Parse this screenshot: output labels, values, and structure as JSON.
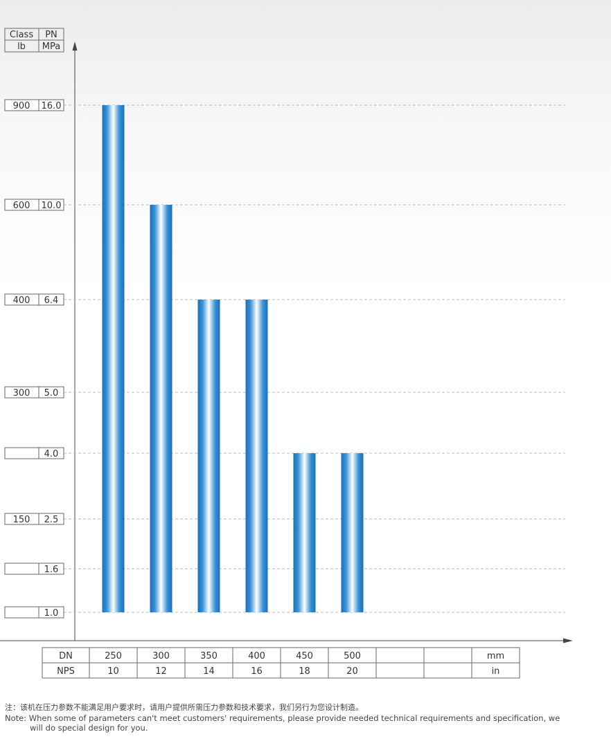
{
  "header": {
    "class_label": "Class",
    "pn_label": "PN",
    "lb_label": "lb",
    "mpa_label": "MPa"
  },
  "colors": {
    "bar_edge": "#1b6fb8",
    "bar_mid": "#ffffff",
    "grid": "#bbbbbb",
    "axis": "#444444",
    "table_border": "#666666"
  },
  "chart_data": {
    "type": "bar",
    "y_scale": "categorical pressure levels",
    "levels": [
      {
        "class": "",
        "pn": "1.0"
      },
      {
        "class": "",
        "pn": "1.6"
      },
      {
        "class": "150",
        "pn": "2.5"
      },
      {
        "class": "",
        "pn": "4.0"
      },
      {
        "class": "300",
        "pn": "5.0"
      },
      {
        "class": "400",
        "pn": "6.4"
      },
      {
        "class": "600",
        "pn": "10.0"
      },
      {
        "class": "900",
        "pn": "16.0"
      }
    ],
    "categories_dn": [
      "250",
      "300",
      "350",
      "400",
      "450",
      "500",
      "",
      "",
      ""
    ],
    "categories_nps": [
      "10",
      "12",
      "14",
      "16",
      "18",
      "20",
      "",
      "",
      ""
    ],
    "bars": [
      {
        "dn": "250",
        "nps": "10",
        "pn_min": "1.0",
        "pn_max": "16.0",
        "class_max": "900"
      },
      {
        "dn": "300",
        "nps": "12",
        "pn_min": "1.0",
        "pn_max": "10.0",
        "class_max": "600"
      },
      {
        "dn": "350",
        "nps": "14",
        "pn_min": "1.0",
        "pn_max": "6.4",
        "class_max": "400"
      },
      {
        "dn": "400",
        "nps": "16",
        "pn_min": "1.0",
        "pn_max": "6.4",
        "class_max": "400"
      },
      {
        "dn": "450",
        "nps": "18",
        "pn_min": "1.0",
        "pn_max": "4.0",
        "class_max": ""
      },
      {
        "dn": "500",
        "nps": "20",
        "pn_min": "1.0",
        "pn_max": "4.0",
        "class_max": ""
      }
    ],
    "x_row_labels": {
      "dn": "DN",
      "nps": "NPS"
    },
    "x_units": {
      "dn": "mm",
      "nps": "in"
    },
    "grid": true
  },
  "notes": {
    "cn": "注：该机在压力参数不能满足用户要求时，请用户提供所需压力参数和技术要求，我们另行为您设计制造。",
    "en_line1": "Note: When some of parameters can't meet customers' requirements, please provide needed technical requirements and specification, we",
    "en_line2": "will do special design for you."
  }
}
